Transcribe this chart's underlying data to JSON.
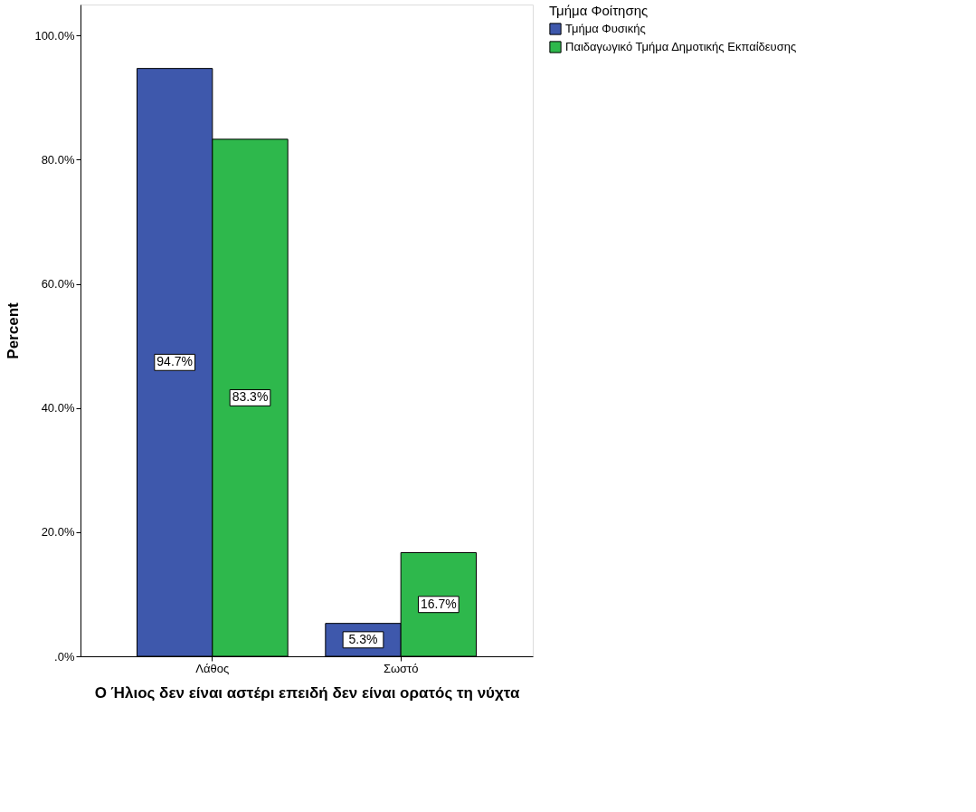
{
  "chart_data": {
    "type": "bar",
    "xlabel": "Ο Ήλιος δεν είναι αστέρι επειδή δεν είναι ορατός τη νύχτα",
    "ylabel": "Percent",
    "legend_title": "Τμήμα Φοίτησης",
    "categories": [
      "Λάθος",
      "Σωστό"
    ],
    "series": [
      {
        "name": "Τμήμα Φυσικής",
        "color": "#3e58ac",
        "values": [
          94.7,
          5.3
        ],
        "value_labels": [
          "94.7%",
          "5.3%"
        ]
      },
      {
        "name": "Παιδαγωγικό Τμήμα Δημοτικής Εκπαίδευσης",
        "color": "#2eb84c",
        "values": [
          83.3,
          16.7
        ],
        "value_labels": [
          "83.3%",
          "16.7%"
        ]
      }
    ],
    "ylim": [
      0,
      105
    ],
    "yticks": [
      {
        "value": 0,
        "label": ".0%"
      },
      {
        "value": 20,
        "label": "20.0%"
      },
      {
        "value": 40,
        "label": "40.0%"
      },
      {
        "value": 60,
        "label": "60.0%"
      },
      {
        "value": 80,
        "label": "80.0%"
      },
      {
        "value": 100,
        "label": "100.0%"
      }
    ],
    "grid": false,
    "legend": "top right"
  }
}
